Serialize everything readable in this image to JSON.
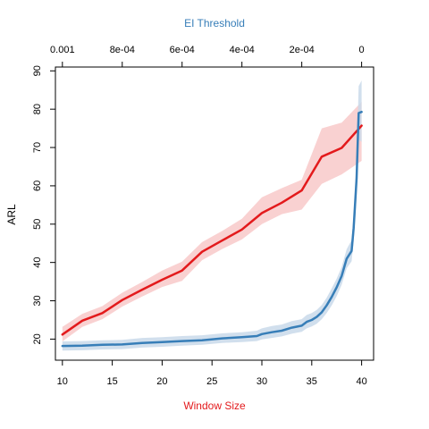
{
  "chart_data": {
    "type": "line",
    "title": "",
    "xlabel": "Window Size",
    "x2label": "EI Threshold",
    "ylabel": "ARL",
    "xlim": [
      9.3,
      41.2
    ],
    "ylim": [
      14.5,
      91
    ],
    "x2lim": [
      0.001,
      0
    ],
    "x_ticks": [
      10,
      15,
      20,
      25,
      30,
      35,
      40
    ],
    "x_tick_labels": [
      "10",
      "15",
      "20",
      "25",
      "30",
      "35",
      "40"
    ],
    "x2_ticks": [
      0.001,
      0.0008,
      0.0006,
      0.0004,
      0.0002,
      0
    ],
    "x2_tick_labels": [
      "0.001",
      "8e-04",
      "6e-04",
      "4e-04",
      "2e-04",
      "0"
    ],
    "y_ticks": [
      20,
      30,
      40,
      50,
      60,
      70,
      80,
      90
    ],
    "y_tick_labels": [
      "20",
      "30",
      "40",
      "50",
      "60",
      "70",
      "80",
      "90"
    ],
    "grid": false,
    "colors": {
      "xlabel": "#e31a1c",
      "x2label": "#377eb8",
      "red_line": "#e31a1c",
      "red_band": "#f8c9c9",
      "blue_line": "#377eb8",
      "blue_band": "#c9d9ea"
    },
    "series": [
      {
        "axis": "bottom",
        "color": "#e31a1c",
        "x": [
          10,
          12,
          14,
          16,
          18,
          20,
          22,
          24,
          26,
          28,
          30,
          32,
          34,
          36,
          38,
          40
        ],
        "y": [
          21.2,
          24.8,
          26.8,
          30.2,
          32.9,
          35.5,
          37.9,
          42.8,
          45.7,
          48.6,
          52.9,
          55.6,
          58.8,
          67.6,
          69.9,
          75.7
        ],
        "lower": [
          19.4,
          23.2,
          25.2,
          28.5,
          31.1,
          33.6,
          35.2,
          40.6,
          43.5,
          46.0,
          50.0,
          52.6,
          53.8,
          60.5,
          63.0,
          66.5
        ],
        "upper": [
          23.2,
          26.6,
          28.6,
          32.1,
          34.9,
          37.9,
          40.2,
          45.3,
          48.2,
          51.4,
          57.0,
          59.4,
          61.6,
          75.0,
          76.5,
          81.9
        ]
      },
      {
        "axis": "bottom",
        "color": "#377eb8",
        "x": [
          10,
          12,
          14,
          16,
          18,
          20,
          22,
          24,
          26,
          28,
          29.5,
          30,
          31,
          32,
          33,
          34,
          34.5,
          35,
          35.5,
          36,
          36.5,
          37,
          37.5,
          38,
          38.5,
          39,
          39.2,
          39.5,
          39.7,
          40
        ],
        "y": [
          18.2,
          18.3,
          18.5,
          18.6,
          19.0,
          19.2,
          19.5,
          19.7,
          20.2,
          20.5,
          20.8,
          21.3,
          21.8,
          22.2,
          23.0,
          23.5,
          24.5,
          25.0,
          25.8,
          27.0,
          28.8,
          31.0,
          33.5,
          36.5,
          41.0,
          43.0,
          49.0,
          62.0,
          79.0,
          79.3
        ],
        "lower": [
          17.0,
          17.1,
          17.3,
          17.4,
          17.8,
          18.0,
          18.3,
          18.5,
          19.0,
          19.2,
          19.5,
          19.9,
          20.3,
          20.7,
          21.4,
          21.9,
          22.8,
          23.3,
          24.0,
          25.2,
          26.8,
          28.8,
          31.2,
          34.2,
          38.5,
          40.3,
          45.5,
          57.0,
          72.0,
          71.5
        ],
        "upper": [
          19.4,
          19.5,
          19.7,
          19.8,
          20.3,
          20.5,
          20.8,
          21.0,
          21.5,
          21.8,
          22.2,
          22.8,
          23.4,
          23.8,
          24.7,
          25.2,
          26.3,
          26.8,
          27.6,
          28.9,
          30.8,
          33.2,
          35.8,
          38.8,
          43.5,
          45.8,
          52.5,
          67.0,
          86.0,
          87.5
        ]
      }
    ]
  }
}
